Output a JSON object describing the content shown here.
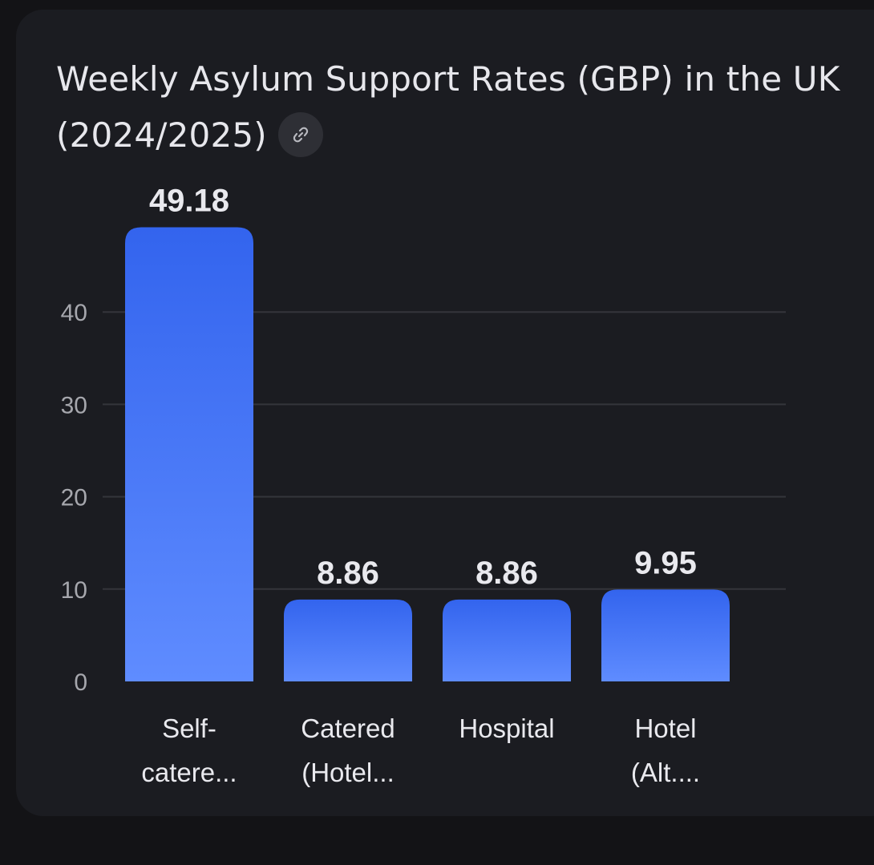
{
  "card": {
    "title": "Weekly Asylum Support Rates (GBP) in the UK (2024/2025)",
    "link_icon": "link-icon"
  },
  "colors": {
    "bar_top": "#3364ee",
    "bar_bottom": "#5f8cff",
    "grid": "#34353b",
    "tick_text": "#a6a7ad",
    "label_text": "#e9e9ee"
  },
  "chart_data": {
    "type": "bar",
    "title": "Weekly Asylum Support Rates (GBP) in the UK (2024/2025)",
    "xlabel": "",
    "ylabel": "",
    "ylim": [
      0,
      49.18
    ],
    "yticks": [
      0,
      10,
      20,
      30,
      40
    ],
    "grid": true,
    "categories": [
      [
        "Self-",
        "catere..."
      ],
      [
        "Catered",
        "(Hotel..."
      ],
      [
        "Hospital"
      ],
      [
        "Hotel",
        "(Alt...."
      ]
    ],
    "values": [
      49.18,
      8.86,
      8.86,
      9.95
    ],
    "data_labels": [
      "49.18",
      "8.86",
      "8.86",
      "9.95"
    ]
  }
}
